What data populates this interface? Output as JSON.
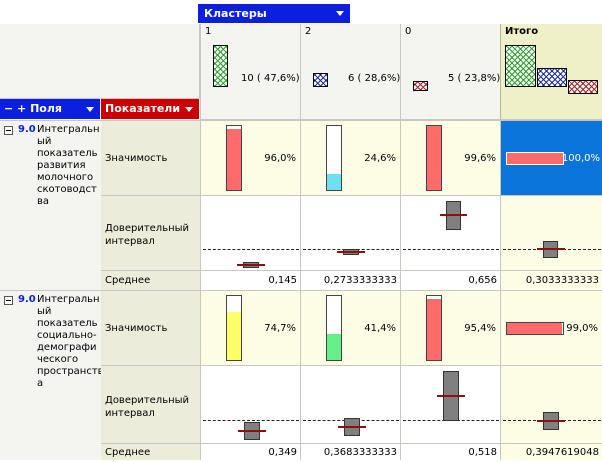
{
  "header": {
    "clusters_label": "Кластеры",
    "fields_label": "− + Поля",
    "metrics_label": "Показатели",
    "total_label": "Итого"
  },
  "columns": [
    {
      "id": "1",
      "count_label": "10 ( 47,6%)",
      "fraction": 0.476,
      "color": "#2aa02a"
    },
    {
      "id": "2",
      "count_label": "6 ( 28,6%)",
      "fraction": 0.286,
      "color": "#1a2aa0"
    },
    {
      "id": "0",
      "count_label": "5 ( 23,8%)",
      "fraction": 0.238,
      "color": "#b02020"
    }
  ],
  "groups": [
    {
      "code": "9.0",
      "title_lines": [
        "Интегральн",
        "ый",
        "показатель",
        "развития",
        "молочного",
        "скотоводст",
        "ва"
      ],
      "significance_label": "Значимость",
      "interval_label": "Доверительный интервал",
      "mean_label": "Среднее",
      "significance": [
        {
          "text": "96,0%",
          "fraction": 0.96,
          "color": "#ff6b6b"
        },
        {
          "text": "24,6%",
          "fraction": 0.246,
          "color": "#6fe0f0"
        },
        {
          "text": "99,6%",
          "fraction": 0.996,
          "color": "#ff6b6b"
        }
      ],
      "significance_total": {
        "text": "100,0%",
        "fraction": 1.0,
        "color": "#ff6b6b"
      },
      "means": [
        "0,145",
        "0,2733333333",
        "0,656"
      ],
      "mean_total": "0,3033333333"
    },
    {
      "code": "9.0",
      "title_lines": [
        "Интегральн",
        "ый",
        "показатель",
        "социально-",
        "демографи",
        "ческого",
        "пространств",
        "а"
      ],
      "significance_label": "Значимость",
      "interval_label": "Доверительный интервал",
      "mean_label": "Среднее",
      "significance": [
        {
          "text": "74,7%",
          "fraction": 0.747,
          "color": "#ffff66"
        },
        {
          "text": "41,4%",
          "fraction": 0.414,
          "color": "#66ee88"
        },
        {
          "text": "95,4%",
          "fraction": 0.954,
          "color": "#ff6b6b"
        }
      ],
      "significance_total": {
        "text": "99,0%",
        "fraction": 0.99,
        "color": "#ff6b6b"
      },
      "means": [
        "0,349",
        "0,3683333333",
        "0,518"
      ],
      "mean_total": "0,3947619048"
    }
  ]
}
